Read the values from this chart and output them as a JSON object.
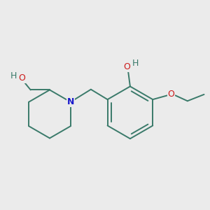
{
  "bg_color": "#ebebeb",
  "bond_color": "#3a7a6a",
  "N_color": "#1a1acc",
  "O_color": "#cc1a1a",
  "H_color": "#3a7a6a",
  "lw": 1.4,
  "figsize": [
    3.0,
    3.0
  ],
  "dpi": 100,
  "xlim": [
    -1.6,
    2.5
  ],
  "ylim": [
    -1.3,
    1.3
  ]
}
